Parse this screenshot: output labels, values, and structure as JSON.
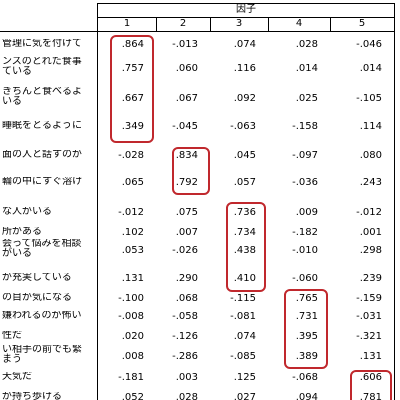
{
  "table": {
    "header": "因子",
    "columns": [
      "1",
      "2",
      "3",
      "4",
      "5"
    ],
    "rows": [
      {
        "label": "管理に気を付けて",
        "values": [
          ".864",
          "-.013",
          ".074",
          ".028",
          "-.046"
        ]
      },
      {
        "label": "ンスのとれた食事",
        "label2": "ている",
        "values": [
          ".757",
          ".060",
          ".116",
          ".014",
          ".014"
        ]
      },
      {
        "label": "きちんと食べるよ",
        "label2": "いる",
        "values": [
          ".667",
          ".067",
          ".092",
          ".025",
          "-.105"
        ]
      },
      {
        "label": "睡眠をとるように",
        "values": [
          ".349",
          "-.045",
          "-.063",
          "-.158",
          ".114"
        ]
      },
      {
        "label": "面の人と話すのが",
        "values": [
          "-.028",
          ".834",
          ".045",
          "-.097",
          ".080"
        ]
      },
      {
        "label": "輪の中にすぐ溶け",
        "values": [
          ".065",
          ".792",
          ".057",
          "-.036",
          ".243"
        ]
      },
      {
        "label": "な人がいる",
        "values": [
          "-.012",
          ".075",
          ".736",
          ".009",
          "-.012"
        ]
      },
      {
        "label": "所がある",
        "values": [
          ".102",
          ".007",
          ".734",
          "-.182",
          ".001"
        ]
      },
      {
        "label": "会って悩みを相談",
        "label2": "がいる",
        "values": [
          ".053",
          "-.026",
          ".438",
          "-.010",
          ".298"
        ]
      },
      {
        "label": "が充実している",
        "values": [
          ".131",
          ".290",
          ".410",
          "-.060",
          ".239"
        ]
      },
      {
        "label": "の目が気になる",
        "values": [
          "-.100",
          ".068",
          "-.115",
          ".765",
          "-.159"
        ]
      },
      {
        "label": "嫌われるのが怖い",
        "values": [
          "-.008",
          "-.058",
          "-.081",
          ".731",
          "-.031"
        ]
      },
      {
        "label": "性だ",
        "values": [
          ".020",
          "-.126",
          ".074",
          ".395",
          "-.321"
        ]
      },
      {
        "label": "い相手の前でも緊",
        "label2": "まう",
        "values": [
          ".008",
          "-.286",
          "-.085",
          ".389",
          ".131"
        ]
      },
      {
        "label": "天気だ",
        "values": [
          "-.181",
          ".003",
          ".125",
          "-.068",
          ".606"
        ]
      },
      {
        "label": "が持ち歩ける",
        "values": [
          ".052",
          ".028",
          ".027",
          ".094",
          ".781"
        ]
      }
    ]
  },
  "highlight_color": "#c0282d"
}
